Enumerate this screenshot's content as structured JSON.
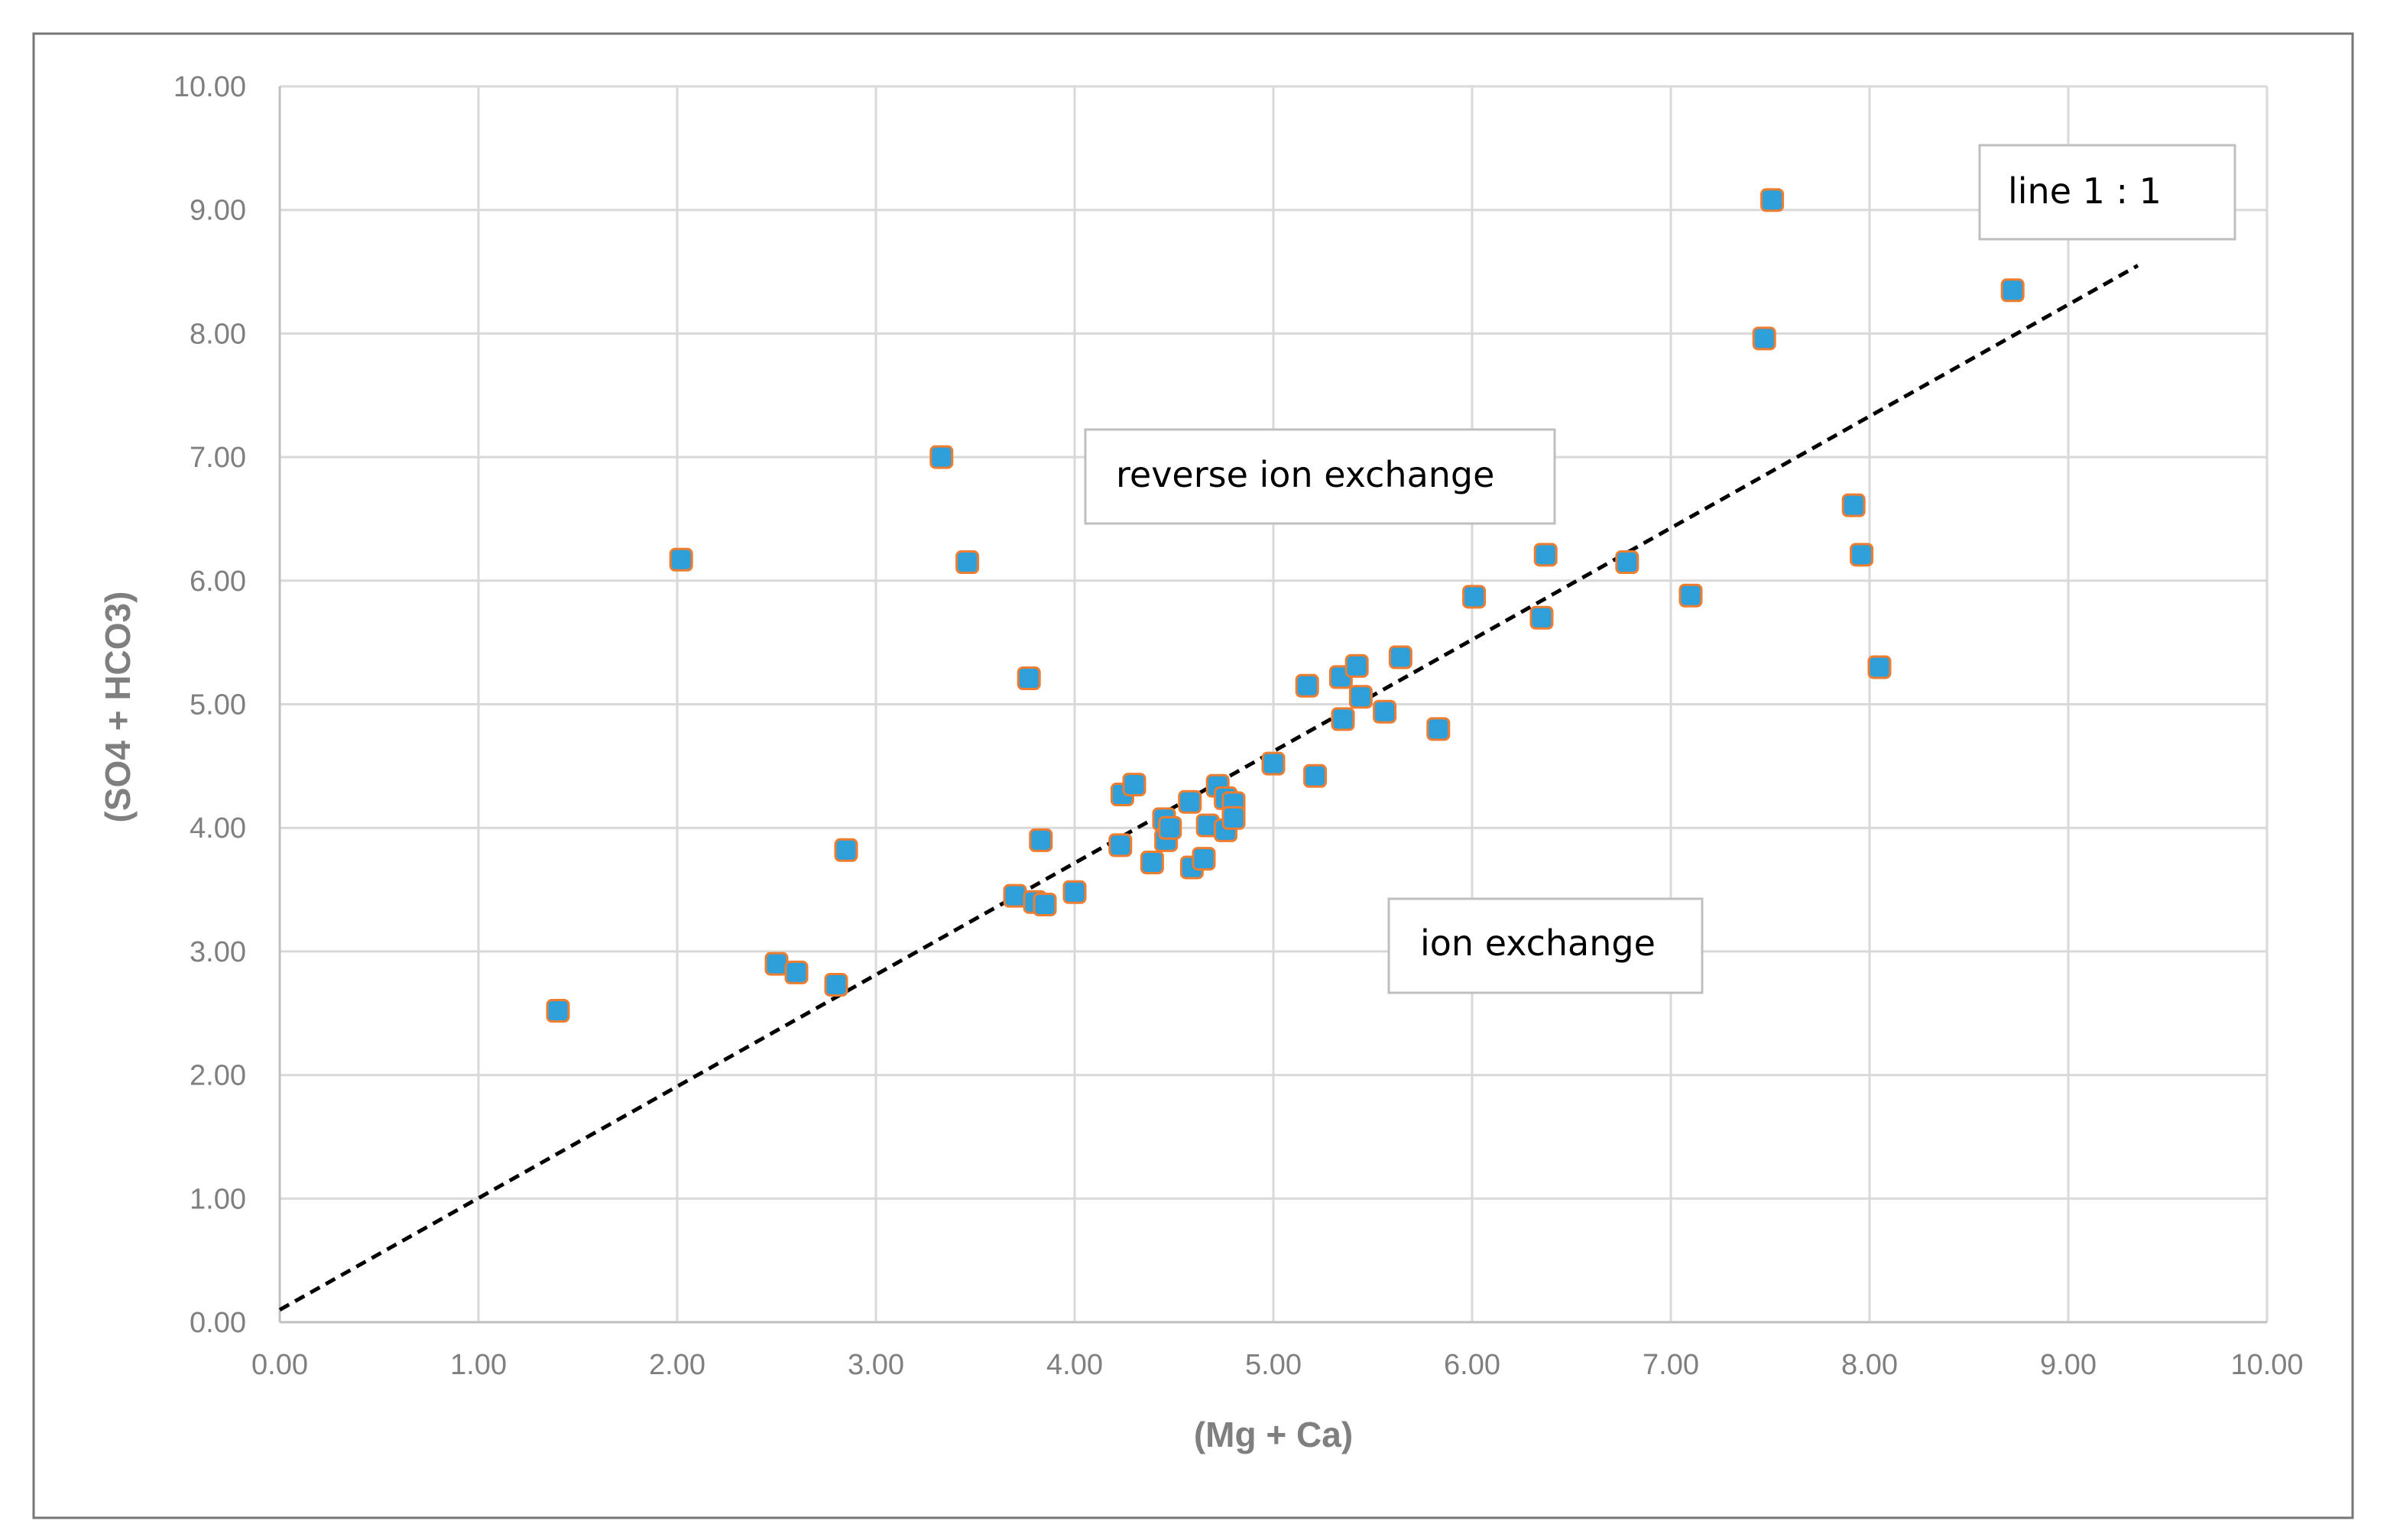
{
  "chart_data": {
    "type": "scatter",
    "xlabel": "(Mg + Ca)",
    "ylabel": "(SO4 + HCO3)",
    "xlim": [
      0,
      10
    ],
    "ylim": [
      0,
      10
    ],
    "x_ticks": [
      "0.00",
      "1.00",
      "2.00",
      "3.00",
      "4.00",
      "5.00",
      "6.00",
      "7.00",
      "8.00",
      "9.00",
      "10.00"
    ],
    "y_ticks": [
      "0.00",
      "1.00",
      "2.00",
      "3.00",
      "4.00",
      "5.00",
      "6.00",
      "7.00",
      "8.00",
      "9.00",
      "10.00"
    ],
    "grid": true,
    "marker_color": "#2E9FD9",
    "marker_edge_color": "#ED7D31",
    "reference_line": {
      "label": "line 1 : 1",
      "x": [
        0,
        9.35
      ],
      "y": [
        0.1,
        8.55
      ]
    },
    "annotations": {
      "line_label": "line 1 : 1",
      "reverse": "reverse ion exchange",
      "ion": "ion exchange"
    },
    "points": [
      [
        1.4,
        2.52
      ],
      [
        2.02,
        6.17
      ],
      [
        2.5,
        2.9
      ],
      [
        2.6,
        2.83
      ],
      [
        2.8,
        2.73
      ],
      [
        2.85,
        3.82
      ],
      [
        3.33,
        7.0
      ],
      [
        3.46,
        6.15
      ],
      [
        3.7,
        3.45
      ],
      [
        3.77,
        5.21
      ],
      [
        3.8,
        3.4
      ],
      [
        3.83,
        3.9
      ],
      [
        3.85,
        3.38
      ],
      [
        4.0,
        3.48
      ],
      [
        4.23,
        3.86
      ],
      [
        4.24,
        4.27
      ],
      [
        4.3,
        4.35
      ],
      [
        4.39,
        3.72
      ],
      [
        4.45,
        4.07
      ],
      [
        4.46,
        3.9
      ],
      [
        4.48,
        4.0
      ],
      [
        4.58,
        4.21
      ],
      [
        4.59,
        3.68
      ],
      [
        4.65,
        3.75
      ],
      [
        4.67,
        4.02
      ],
      [
        4.72,
        4.34
      ],
      [
        4.76,
        4.24
      ],
      [
        4.76,
        3.98
      ],
      [
        4.8,
        4.2
      ],
      [
        4.8,
        4.08
      ],
      [
        5.0,
        4.52
      ],
      [
        5.17,
        5.15
      ],
      [
        5.21,
        4.42
      ],
      [
        5.34,
        5.22
      ],
      [
        5.35,
        4.88
      ],
      [
        5.42,
        5.31
      ],
      [
        5.44,
        5.06
      ],
      [
        5.56,
        4.94
      ],
      [
        5.64,
        5.38
      ],
      [
        5.83,
        4.8
      ],
      [
        6.01,
        5.87
      ],
      [
        6.35,
        5.7
      ],
      [
        6.37,
        6.21
      ],
      [
        6.78,
        6.15
      ],
      [
        7.1,
        5.88
      ],
      [
        7.47,
        7.96
      ],
      [
        7.51,
        9.08
      ],
      [
        7.92,
        6.61
      ],
      [
        7.96,
        6.21
      ],
      [
        8.05,
        5.3
      ],
      [
        8.72,
        8.35
      ]
    ]
  }
}
